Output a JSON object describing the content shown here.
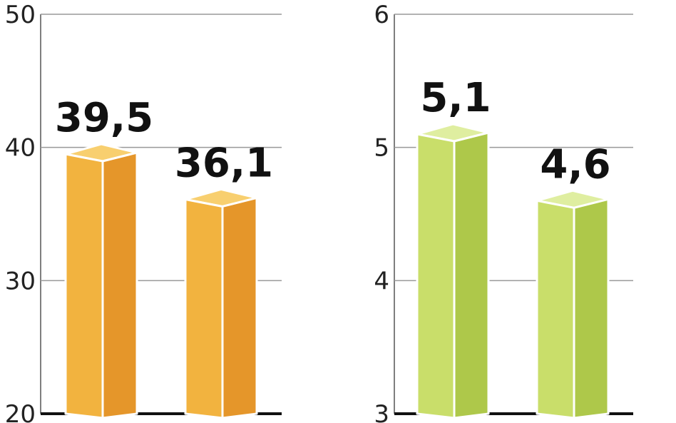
{
  "chart_data": [
    {
      "type": "bar",
      "categories": [
        "",
        ""
      ],
      "values": [
        39.5,
        36.1
      ],
      "value_labels": [
        "39,5",
        "36,1"
      ],
      "ylim": [
        20,
        50
      ],
      "yticks": [
        20,
        30,
        40,
        50
      ],
      "ytick_labels": [
        "20",
        "30",
        "40",
        "50"
      ],
      "grid": true,
      "colors": {
        "front": "#f2b33f",
        "side": "#e5962a",
        "top": "#f8cf6f"
      }
    },
    {
      "type": "bar",
      "categories": [
        "",
        ""
      ],
      "values": [
        5.1,
        4.6
      ],
      "value_labels": [
        "5,1",
        "4,6"
      ],
      "ylim": [
        3,
        6
      ],
      "yticks": [
        3,
        4,
        5,
        6
      ],
      "ytick_labels": [
        "3",
        "4",
        "5",
        "6"
      ],
      "grid": true,
      "colors": {
        "front": "#c9de6a",
        "side": "#aec84a",
        "top": "#dfeea0"
      }
    }
  ]
}
